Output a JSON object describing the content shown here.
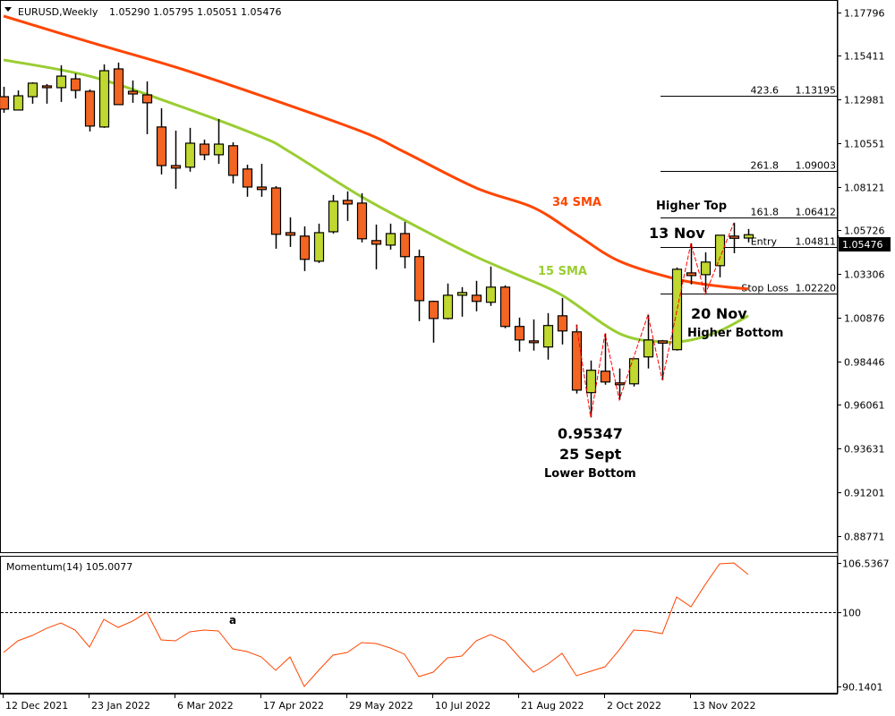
{
  "header": {
    "symbol_timeframe": "EURUSD,Weekly",
    "ohlc": "1.05290 1.05795 1.05051 1.05476"
  },
  "colors": {
    "bull": "#c0d82f",
    "bear": "#f26522",
    "sma34": "#ff4500",
    "sma15": "#9acd32",
    "zigzag": "#ff0000",
    "momentum": "#ff4500"
  },
  "chart_data": {
    "type": "candlestick",
    "title": "EURUSD,Weekly",
    "price_axis": {
      "ticks": [
        "1.17796",
        "1.15411",
        "1.12981",
        "1.10551",
        "1.08121",
        "1.05726",
        "1.03306",
        "1.00876",
        "0.98446",
        "0.96061",
        "0.93631",
        "0.91201",
        "0.88771"
      ],
      "current_price": "1.05476"
    },
    "time_axis": {
      "labels": [
        {
          "label": "12 Dec 2021",
          "candle": 0
        },
        {
          "label": "23 Jan 2022",
          "candle": 6
        },
        {
          "label": "6 Mar 2022",
          "candle": 12
        },
        {
          "label": "17 Apr 2022",
          "candle": 18
        },
        {
          "label": "29 May 2022",
          "candle": 24
        },
        {
          "label": "10 Jul 2022",
          "candle": 30
        },
        {
          "label": "21 Aug 2022",
          "candle": 36
        },
        {
          "label": "2 Oct 2022",
          "candle": 42
        },
        {
          "label": "13 Nov 2022",
          "candle": 48
        }
      ]
    },
    "candles_ohlc": [
      [
        1.1313,
        1.1368,
        1.1224,
        1.1244
      ],
      [
        1.1239,
        1.1348,
        1.1236,
        1.1318
      ],
      [
        1.1313,
        1.1393,
        1.1274,
        1.1388
      ],
      [
        1.1373,
        1.1383,
        1.1274,
        1.1363
      ],
      [
        1.1363,
        1.1487,
        1.1284,
        1.1427
      ],
      [
        1.1412,
        1.1442,
        1.1303,
        1.1348
      ],
      [
        1.1343,
        1.1353,
        1.112,
        1.115
      ],
      [
        1.1145,
        1.1492,
        1.114,
        1.1457
      ],
      [
        1.1467,
        1.1502,
        1.1328,
        1.1269
      ],
      [
        1.1343,
        1.1403,
        1.1279,
        1.1328
      ],
      [
        1.1323,
        1.1398,
        1.1105,
        1.1279
      ],
      [
        1.1145,
        1.1249,
        1.0882,
        1.0931
      ],
      [
        1.0926,
        1.1125,
        1.0802,
        1.0917
      ],
      [
        1.0922,
        1.114,
        1.0897,
        1.1055
      ],
      [
        1.105,
        1.1075,
        1.0961,
        1.0991
      ],
      [
        1.0991,
        1.1189,
        1.0941,
        1.105
      ],
      [
        1.1041,
        1.106,
        1.0832,
        1.0877
      ],
      [
        1.0912,
        1.0936,
        1.0758,
        1.0812
      ],
      [
        1.0807,
        1.0941,
        1.0758,
        1.0798
      ],
      [
        1.0807,
        1.0817,
        1.047,
        1.055
      ],
      [
        1.0559,
        1.0644,
        1.048,
        1.0545
      ],
      [
        1.054,
        1.0594,
        1.0346,
        1.0411
      ],
      [
        1.0401,
        1.0609,
        1.0391,
        1.0559
      ],
      [
        1.0564,
        1.0768,
        1.0554,
        1.0733
      ],
      [
        1.0738,
        1.0788,
        1.0624,
        1.0718
      ],
      [
        1.0723,
        1.0778,
        1.0505,
        1.0525
      ],
      [
        1.0515,
        1.0604,
        1.0356,
        1.0495
      ],
      [
        1.049,
        1.0609,
        1.0465,
        1.0554
      ],
      [
        1.0554,
        1.0619,
        1.0361,
        1.0426
      ],
      [
        1.0426,
        1.0465,
        1.0068,
        1.0182
      ],
      [
        1.0178,
        1.0182,
        0.9949,
        1.0083
      ],
      [
        1.0083,
        1.0277,
        1.0078,
        1.0212
      ],
      [
        1.0212,
        1.0257,
        1.0093,
        1.0227
      ],
      [
        1.0212,
        1.0292,
        1.0123,
        1.0178
      ],
      [
        1.0173,
        1.0371,
        1.0153,
        1.0257
      ],
      [
        1.0257,
        1.0267,
        1.0029,
        1.0039
      ],
      [
        1.0039,
        1.0088,
        0.99,
        0.9964
      ],
      [
        0.9959,
        1.0078,
        0.9905,
        0.9949
      ],
      [
        0.9925,
        1.0113,
        0.9855,
        1.0044
      ],
      [
        1.0098,
        1.0197,
        0.9939,
        1.0014
      ],
      [
        1.0009,
        1.0049,
        0.9667,
        0.9686
      ],
      [
        0.9672,
        0.985,
        0.95347,
        0.9796
      ],
      [
        0.9791,
        1.0,
        0.9716,
        0.9731
      ],
      [
        0.9726,
        0.9806,
        0.9632,
        0.9716
      ],
      [
        0.9721,
        0.986,
        0.9706,
        0.986
      ],
      [
        0.987,
        1.0103,
        0.9806,
        0.9964
      ],
      [
        0.9954,
        0.9964,
        0.9741,
        0.9949
      ],
      [
        0.991,
        1.0366,
        0.9905,
        1.0356
      ],
      [
        1.0336,
        1.05,
        1.0272,
        1.0321
      ],
      [
        1.0326,
        1.045,
        1.0217,
        1.0396
      ],
      [
        1.0376,
        1.0545,
        1.0311,
        1.0545
      ],
      [
        1.0535,
        1.0614,
        1.0445,
        1.053
      ],
      [
        1.0529,
        1.05795,
        1.05051,
        1.05476
      ]
    ],
    "sma34_points": [
      [
        0,
        1.176
      ],
      [
        6,
        1.1616
      ],
      [
        12,
        1.1477
      ],
      [
        18,
        1.1318
      ],
      [
        25,
        1.112
      ],
      [
        28,
        1.1006
      ],
      [
        33,
        1.0807
      ],
      [
        37,
        1.0698
      ],
      [
        40,
        1.0549
      ],
      [
        43,
        1.0401
      ],
      [
        47,
        1.0301
      ],
      [
        50,
        1.0262
      ],
      [
        52,
        1.0247
      ]
    ],
    "sma15_points": [
      [
        0,
        1.1517
      ],
      [
        6,
        1.1427
      ],
      [
        12,
        1.1269
      ],
      [
        18,
        1.109
      ],
      [
        20,
        1.1006
      ],
      [
        25,
        1.0758
      ],
      [
        30,
        1.0545
      ],
      [
        33,
        1.0425
      ],
      [
        36,
        1.0321
      ],
      [
        39,
        1.0212
      ],
      [
        43,
        1.0
      ],
      [
        46,
        0.9954
      ],
      [
        48,
        0.9964
      ],
      [
        50,
        1.0014
      ],
      [
        52,
        1.0098
      ]
    ],
    "zigzag_points": [
      [
        40,
        1.0049
      ],
      [
        41,
        0.95347
      ],
      [
        42,
        1.0
      ],
      [
        43,
        0.9632
      ],
      [
        45,
        1.0103
      ],
      [
        46,
        0.9741
      ],
      [
        48,
        1.05
      ],
      [
        49,
        1.0217
      ],
      [
        51,
        1.0614
      ]
    ],
    "fib_levels": [
      {
        "level": "423.6",
        "price": 1.13195,
        "price_label": "1.13195"
      },
      {
        "level": "261.8",
        "price": 1.09003,
        "price_label": "1.09003"
      },
      {
        "level": "161.8",
        "price": 1.06412,
        "price_label": "1.06412"
      },
      {
        "level": "Entry",
        "price": 1.04811,
        "price_label": "1.04811"
      },
      {
        "level": "Stop Loss",
        "price": 1.0222,
        "price_label": "1.02220"
      }
    ],
    "momentum": {
      "label": "Momentum(14) 105.0077",
      "ticks": [
        "106.5367",
        "100",
        "90.1401"
      ],
      "range": [
        90.1401,
        106.5367
      ],
      "reference": 100,
      "values": [
        94.65,
        96.2,
        96.91,
        97.86,
        98.57,
        97.62,
        95.37,
        99.05,
        97.98,
        98.81,
        100.0,
        96.32,
        96.2,
        97.39,
        97.62,
        97.51,
        95.13,
        94.77,
        94.06,
        92.28,
        94.06,
        90.14,
        92.28,
        94.3,
        94.65,
        95.96,
        95.84,
        95.25,
        94.42,
        91.45,
        92.04,
        93.94,
        94.18,
        96.2,
        97.03,
        96.2,
        94.06,
        92.04,
        93.11,
        94.54,
        91.57,
        92.16,
        92.75,
        95.01,
        97.62,
        97.51,
        97.15,
        102.02,
        100.71,
        103.68,
        106.42,
        106.53,
        105.0077
      ]
    }
  },
  "annotations": {
    "sma34": "34 SMA",
    "sma15": "15 SMA",
    "higher_top": "Higher Top",
    "nov13": "13 Nov",
    "nov20": "20 Nov",
    "higher_bottom": "Higher Bottom",
    "low_price": "0.95347",
    "sept25": "25 Sept",
    "lower_bottom": "Lower Bottom",
    "momentum_mark": "a"
  }
}
